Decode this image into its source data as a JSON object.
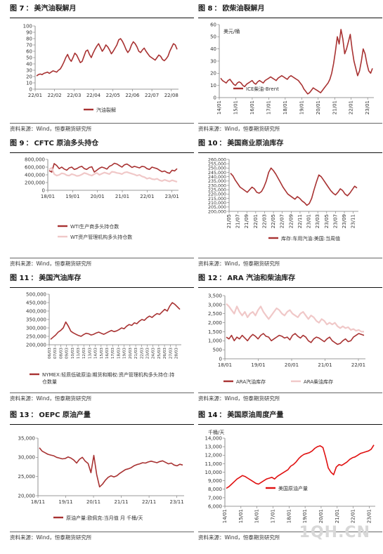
{
  "colors": {
    "dark_red": "#a83232",
    "pink": "#f0c8c8",
    "bright_red": "#e01010",
    "axis": "#777777",
    "grid": "#dddddd"
  },
  "source_text": "资料来源：Wind，恒泰期货研究所",
  "watermark": "1QH.CN",
  "panels": [
    {
      "num": "图 7",
      "sep": "：",
      "title": "美汽油裂解月",
      "chart_data": {
        "type": "line",
        "yticks": [
          "0",
          "10",
          "20",
          "30",
          "40",
          "50",
          "60",
          "70",
          "80",
          "90",
          "100"
        ],
        "ylim": [
          0,
          100
        ],
        "xticks": [
          "22/01",
          "22/02",
          "22/03",
          "22/04",
          "22/05",
          "22/06",
          "22/07",
          "22/08"
        ],
        "series": [
          {
            "name": "汽油裂解",
            "values": [
              21,
              23,
              24,
              23,
              25,
              26,
              27,
              25,
              27,
              29,
              28,
              27,
              30,
              32,
              37,
              43,
              50,
              55,
              48,
              44,
              50,
              57,
              54,
              48,
              42,
              44,
              52,
              60,
              62,
              55,
              50,
              57,
              63,
              68,
              72,
              66,
              60,
              64,
              70,
              67,
              62,
              56,
              60,
              65,
              70,
              78,
              80,
              76,
              70,
              63,
              58,
              62,
              70,
              75,
              72,
              67,
              60,
              58,
              62,
              65,
              60,
              56,
              52,
              50,
              48,
              46,
              50,
              54,
              52,
              47,
              45,
              48,
              52,
              60,
              66,
              72,
              70,
              63
            ]
          }
        ]
      }
    },
    {
      "num": "图 8",
      "sep": "：",
      "title": "欧柴油裂解月",
      "chart_data": {
        "type": "line",
        "yunit": "美元/桶",
        "yticks": [
          "0",
          "10",
          "20",
          "30",
          "40",
          "50",
          "60"
        ],
        "ylim": [
          0,
          60
        ],
        "xticks": [
          "14/01",
          "15/01",
          "16/01",
          "17/01",
          "18/01",
          "19/01",
          "20/01",
          "21/01",
          "22/01",
          "23/01"
        ],
        "series": [
          {
            "name": "ICE柴油-Brent",
            "values": [
              16,
              14,
              13,
              12,
              14,
              15,
              13,
              11,
              10,
              12,
              13,
              12,
              10,
              9,
              11,
              12,
              13,
              14,
              12,
              11,
              13,
              14,
              13,
              12,
              14,
              15,
              16,
              17,
              16,
              15,
              14,
              16,
              17,
              18,
              17,
              16,
              15,
              17,
              18,
              17,
              16,
              15,
              14,
              12,
              10,
              7,
              5,
              3,
              4,
              6,
              8,
              7,
              6,
              5,
              4,
              6,
              8,
              10,
              12,
              15,
              20,
              28,
              38,
              50,
              44,
              56,
              48,
              36,
              40,
              46,
              52,
              40,
              30,
              24,
              18,
              22,
              30,
              40,
              36,
              28,
              22,
              20,
              24
            ]
          }
        ]
      }
    },
    {
      "num": "图 9",
      "sep": "：",
      "title": "CFTC 原油多头持仓",
      "chart_data": {
        "type": "line",
        "yticks": [
          "0",
          "200,000",
          "400,000",
          "600,000",
          "800,000"
        ],
        "ylim": [
          0,
          800000
        ],
        "xticks": [
          "18/01",
          "19/01",
          "20/01",
          "21/01",
          "22/01",
          "23/01"
        ],
        "series": [
          {
            "name": "WTI生产商多头持仓数",
            "values": [
              510000,
              470000,
              690000,
              640000,
              560000,
              600000,
              550000,
              520000,
              580000,
              600000,
              540000,
              560000,
              600000,
              620000,
              560000,
              540000,
              590000,
              610000,
              470000,
              520000,
              570000,
              600000,
              580000,
              550000,
              620000,
              650000,
              700000,
              680000,
              640000,
              600000,
              660000,
              680000,
              640000,
              590000,
              620000,
              600000,
              580000,
              620000,
              610000,
              560000,
              540000,
              600000,
              580000,
              560000,
              520000,
              480000,
              500000,
              460000,
              440000,
              520000,
              500000,
              560000
            ]
          },
          {
            "name": "WT资产管理机构多头持仓数",
            "values": [
              540000,
              580000,
              420000,
              380000,
              400000,
              440000,
              430000,
              390000,
              380000,
              420000,
              400000,
              370000,
              380000,
              410000,
              450000,
              430000,
              400000,
              380000,
              420000,
              450000,
              400000,
              430000,
              460000,
              440000,
              420000,
              480000,
              470000,
              450000,
              440000,
              420000,
              460000,
              470000,
              450000,
              430000,
              410000,
              380000,
              400000,
              360000,
              340000,
              300000,
              320000,
              290000,
              280000,
              300000,
              260000,
              240000,
              270000,
              250000,
              230000,
              260000,
              240000,
              220000
            ]
          }
        ]
      }
    },
    {
      "num": "图 10",
      "sep": "：",
      "title": "美国商业原油库存",
      "chart_data": {
        "type": "line",
        "yticks": [
          "200,000",
          "205,000",
          "210,000",
          "215,000",
          "220,000",
          "225,000",
          "230,000",
          "235,000",
          "240,000",
          "245,000",
          "250,000",
          "255,000",
          "260,000"
        ],
        "ylim": [
          200000,
          260000
        ],
        "xticks": [
          "21/05",
          "21/07",
          "21/09",
          "22/01",
          "22/03",
          "22/05",
          "22/07",
          "22/09",
          "22/11",
          "23/01",
          "23/03",
          "23/05",
          "23/07",
          "23/09",
          "23/11"
        ],
        "series": [
          {
            "name": "库存:车用汽油:美国:当周值",
            "values": [
              244000,
              241000,
              236000,
              232000,
              228000,
              226000,
              224000,
              222000,
              225000,
              228000,
              226000,
              222000,
              221000,
              223000,
              228000,
              235000,
              245000,
              250000,
              247000,
              243000,
              238000,
              233000,
              228000,
              224000,
              220000,
              218000,
              216000,
              214000,
              217000,
              215000,
              212000,
              210000,
              207000,
              209000,
              215000,
              225000,
              234000,
              242000,
              240000,
              236000,
              232000,
              228000,
              224000,
              221000,
              219000,
              222000,
              226000,
              224000,
              220000,
              218000,
              221000,
              225000,
              229000,
              227000
            ]
          }
        ]
      }
    },
    {
      "num": "图 11",
      "sep": "：",
      "title": "美国汽油库存",
      "chart_data": {
        "type": "line",
        "yticks": [
          "200,000",
          "250,000",
          "300,000",
          "350,000",
          "400,000",
          "450,000",
          "500,000"
        ],
        "ylim": [
          200000,
          500000
        ],
        "xticks": [
          "06/03",
          "07/03",
          "08/03",
          "09/03",
          "10/03",
          "11/03",
          "12/03",
          "13/03",
          "14/03",
          "15/03",
          "16/03",
          "17/03",
          "18/03",
          "19/03",
          "20/03",
          "21/03",
          "22/03",
          "23/03",
          "24/03",
          "25/03",
          "26/03",
          "27/03",
          "28/03"
        ],
        "series": [
          {
            "name": "NYMEX:轻质低硫原油:期货和期权:资产管理机构多头持仓:持仓数量",
            "values": [
              232000,
              245000,
              258000,
              275000,
              285000,
              300000,
              335000,
              310000,
              280000,
              270000,
              262000,
              255000,
              250000,
              260000,
              268000,
              265000,
              258000,
              262000,
              270000,
              275000,
              268000,
              262000,
              270000,
              278000,
              285000,
              278000,
              282000,
              290000,
              300000,
              295000,
              310000,
              320000,
              315000,
              330000,
              325000,
              340000,
              350000,
              345000,
              360000,
              370000,
              362000,
              375000,
              385000,
              380000,
              395000,
              410000,
              400000,
              430000,
              450000,
              440000,
              425000,
              410000
            ]
          }
        ]
      }
    },
    {
      "num": "图 12",
      "sep": "：",
      "title": "ARA 汽油和柴油库存",
      "chart_data": {
        "type": "line",
        "yticks": [
          "0",
          "500",
          "1,000",
          "1,500",
          "2,000",
          "2,500",
          "3,000",
          "3,500"
        ],
        "ylim": [
          0,
          3500
        ],
        "xticks": [
          "18/01",
          "19/01",
          "20/01",
          "21/01",
          "22/01"
        ],
        "series": [
          {
            "name": "ARA汽油库存",
            "values": [
              1200,
              1100,
              1300,
              1000,
              1200,
              1100,
              1300,
              1150,
              1000,
              1200,
              1350,
              1250,
              1100,
              1300,
              1400,
              1250,
              1200,
              1000,
              1100,
              1200,
              1300,
              1250,
              1150,
              1200,
              1050,
              1300,
              1400,
              1250,
              1150,
              1300,
              1200,
              1000,
              900,
              1100,
              1200,
              1150,
              1050,
              950,
              1100,
              1200,
              1000,
              900,
              800,
              850,
              1000,
              1100,
              950,
              1000,
              1200,
              1300,
              1400,
              1350,
              1300
            ]
          },
          {
            "name": "ARA柴油库存",
            "values": [
              3050,
              2900,
              2700,
              2500,
              2900,
              2600,
              2400,
              2600,
              2300,
              2500,
              2600,
              2400,
              2700,
              2900,
              2600,
              2400,
              2200,
              2400,
              2600,
              2800,
              2700,
              2500,
              2400,
              2600,
              2700,
              2500,
              2400,
              2300,
              2500,
              2600,
              2400,
              2200,
              2400,
              2300,
              2100,
              2000,
              2200,
              2100,
              1900,
              2000,
              1900,
              2000,
              1800,
              1700,
              1800,
              1700,
              1750,
              1600,
              1650,
              1550,
              1600,
              1500,
              1500
            ]
          }
        ]
      }
    },
    {
      "num": "图 13",
      "sep": "：",
      "title": "OEPC 原油产量",
      "chart_data": {
        "type": "line",
        "yticks": [
          "20,000",
          "25,000",
          "30,000",
          "35,000"
        ],
        "ylim": [
          20000,
          35000
        ],
        "xticks": [
          "18/11",
          "19/11",
          "20/11",
          "21/11",
          "22/11",
          "23/11"
        ],
        "series": [
          {
            "name": "原油产量:欧佩克:当月值 月 千桶/天",
            "values": [
              32500,
              31600,
              31200,
              30800,
              30600,
              30400,
              30000,
              29800,
              29600,
              29700,
              30100,
              29800,
              29300,
              28500,
              29500,
              30000,
              29000,
              28400,
              26000,
              30500,
              25500,
              22300,
              23000,
              24000,
              24800,
              25200,
              24900,
              25200,
              25800,
              26300,
              26800,
              27000,
              27300,
              27800,
              28100,
              28300,
              28600,
              28500,
              28800,
              29000,
              28800,
              28600,
              28900,
              29100,
              28700,
              28300,
              28500,
              28000,
              27800,
              28200,
              28000
            ]
          }
        ]
      }
    },
    {
      "num": "图 14",
      "sep": "：",
      "title": "美国原油周度产量",
      "chart_data": {
        "type": "line",
        "yunit": "千桶/天",
        "yticks": [
          "6,000",
          "7,000",
          "8,000",
          "9,000",
          "10,000",
          "11,000",
          "12,000",
          "13,000",
          "14,000"
        ],
        "ylim": [
          6000,
          14000
        ],
        "xticks": [
          "14/01",
          "15/01",
          "16/01",
          "17/01",
          "18/01",
          "19/01",
          "20/01",
          "21/01",
          "22/01",
          "23/01"
        ],
        "series": [
          {
            "name": "美国原油产量",
            "values": [
              8100,
              8300,
              8600,
              8900,
              9200,
              9400,
              9600,
              9500,
              9300,
              9100,
              8900,
              8700,
              8600,
              8800,
              9000,
              9200,
              9300,
              9400,
              9200,
              9500,
              9700,
              9900,
              10100,
              10300,
              10700,
              10900,
              11200,
              11600,
              11900,
              12100,
              12200,
              12300,
              12500,
              12800,
              13000,
              13100,
              12900,
              11800,
              10500,
              10000,
              9700,
              10600,
              10900,
              10800,
              11000,
              11200,
              11500,
              11700,
              11800,
              12000,
              12200,
              12300,
              12400,
              12500,
              12700,
              13200
            ]
          }
        ]
      }
    }
  ]
}
